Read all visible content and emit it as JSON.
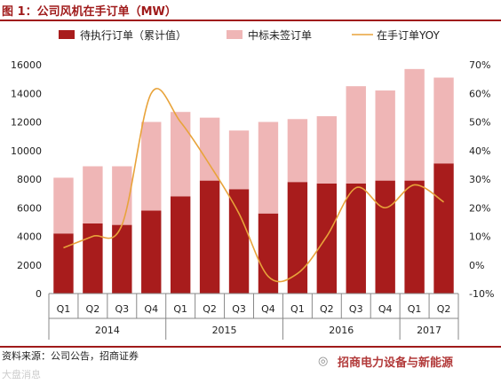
{
  "title": "图 1：公司风机在手订单（MW）",
  "source": "资料来源：公司公告，招商证券",
  "brand": "招商电力设备与新能源",
  "brand_icon": "wechat-icon",
  "watermark": "大盘消息",
  "colors": {
    "accent": "#a01b1b",
    "bar_dark": "#a81c1c",
    "bar_light": "#efb6b6",
    "line": "#e8a33a"
  },
  "chart_data": {
    "type": "bar",
    "stacked": true,
    "title": "",
    "categories": [
      "Q1",
      "Q2",
      "Q3",
      "Q4",
      "Q1",
      "Q2",
      "Q3",
      "Q4",
      "Q1",
      "Q2",
      "Q3",
      "Q4",
      "Q1",
      "Q2"
    ],
    "year_groups": [
      {
        "label": "2014",
        "span": 4
      },
      {
        "label": "2015",
        "span": 4
      },
      {
        "label": "2016",
        "span": 4
      },
      {
        "label": "2017",
        "span": 2
      }
    ],
    "series": [
      {
        "name": "待执行订单（累计值）",
        "type": "bar",
        "axis": "left",
        "values": [
          4200,
          4900,
          4800,
          5800,
          6800,
          7900,
          7300,
          5600,
          7800,
          7700,
          7700,
          7900,
          7900,
          9100
        ]
      },
      {
        "name": "中标未签订单",
        "type": "bar",
        "axis": "left",
        "values": [
          3900,
          4000,
          4100,
          6200,
          5900,
          4400,
          4100,
          6400,
          4400,
          4700,
          6800,
          6300,
          7800,
          6000
        ]
      },
      {
        "name": "在手订单YOY",
        "type": "line",
        "axis": "right",
        "values": [
          0.06,
          0.1,
          0.14,
          0.6,
          0.5,
          0.35,
          0.18,
          -0.04,
          -0.03,
          0.1,
          0.27,
          0.2,
          0.28,
          0.22
        ]
      }
    ],
    "y_left": {
      "min": 0,
      "max": 16000,
      "ticks": [
        0,
        2000,
        4000,
        6000,
        8000,
        10000,
        12000,
        14000,
        16000
      ]
    },
    "y_right": {
      "min": -0.1,
      "max": 0.7,
      "ticks": [
        "-10%",
        "0%",
        "10%",
        "20%",
        "30%",
        "40%",
        "50%",
        "60%",
        "70%"
      ]
    },
    "legend_position": "top",
    "grid": false
  }
}
